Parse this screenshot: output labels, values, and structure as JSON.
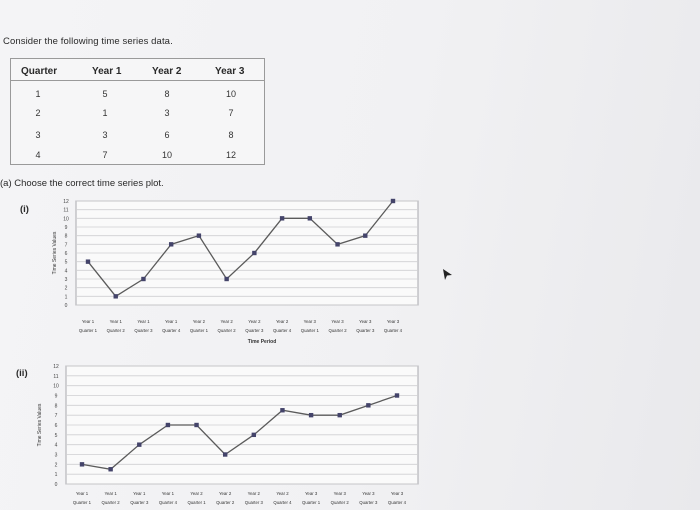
{
  "intro_text": "Consider the following time series data.",
  "table": {
    "headers": [
      "Quarter",
      "Year 1",
      "Year 2",
      "Year 3"
    ],
    "rows": [
      [
        "1",
        "5",
        "8",
        "10"
      ],
      [
        "2",
        "1",
        "3",
        "7"
      ],
      [
        "3",
        "3",
        "6",
        "8"
      ],
      [
        "4",
        "7",
        "10",
        "12"
      ]
    ]
  },
  "question": "(a) Choose the correct time series plot.",
  "options": [
    {
      "label": "(i)",
      "ylabel": "Time Series Values",
      "xlabel": "Time Period"
    },
    {
      "label": "(ii)",
      "ylabel": "Time Series Values",
      "xlabel": ""
    }
  ],
  "colors": {
    "line": "#5b5b5b",
    "marker": "#44446a",
    "grid": "#cfcfd2"
  },
  "chart_data": [
    {
      "type": "line",
      "ylabel": "Time Series Values",
      "xlabel": "Time Period",
      "ylim": [
        0,
        12
      ],
      "yticks": [
        "0",
        "1",
        "2",
        "3",
        "4",
        "5",
        "6",
        "7",
        "8",
        "9",
        "10",
        "11",
        "12"
      ],
      "categories": [
        {
          "year": "Year 1",
          "quarter": "Quarter 1"
        },
        {
          "year": "Year 1",
          "quarter": "Quarter 2"
        },
        {
          "year": "Year 1",
          "quarter": "Quarter 3"
        },
        {
          "year": "Year 1",
          "quarter": "Quarter 4"
        },
        {
          "year": "Year 2",
          "quarter": "Quarter 1"
        },
        {
          "year": "Year 2",
          "quarter": "Quarter 2"
        },
        {
          "year": "Year 2",
          "quarter": "Quarter 3"
        },
        {
          "year": "Year 2",
          "quarter": "Quarter 4"
        },
        {
          "year": "Year 3",
          "quarter": "Quarter 1"
        },
        {
          "year": "Year 3",
          "quarter": "Quarter 2"
        },
        {
          "year": "Year 3",
          "quarter": "Quarter 3"
        },
        {
          "year": "Year 3",
          "quarter": "Quarter 4"
        }
      ],
      "values": [
        5,
        1,
        3,
        7,
        8,
        3,
        6,
        10,
        10,
        7,
        8,
        12
      ]
    },
    {
      "type": "line",
      "ylabel": "Time Series Values",
      "xlabel": "",
      "ylim": [
        0,
        12
      ],
      "yticks": [
        "0",
        "1",
        "2",
        "3",
        "4",
        "5",
        "6",
        "7",
        "8",
        "9",
        "10",
        "11",
        "12"
      ],
      "categories": [
        {
          "year": "Year 1",
          "quarter": "Quarter 1"
        },
        {
          "year": "Year 1",
          "quarter": "Quarter 2"
        },
        {
          "year": "Year 1",
          "quarter": "Quarter 3"
        },
        {
          "year": "Year 1",
          "quarter": "Quarter 4"
        },
        {
          "year": "Year 2",
          "quarter": "Quarter 1"
        },
        {
          "year": "Year 2",
          "quarter": "Quarter 2"
        },
        {
          "year": "Year 2",
          "quarter": "Quarter 3"
        },
        {
          "year": "Year 2",
          "quarter": "Quarter 4"
        },
        {
          "year": "Year 3",
          "quarter": "Quarter 1"
        },
        {
          "year": "Year 3",
          "quarter": "Quarter 2"
        },
        {
          "year": "Year 3",
          "quarter": "Quarter 3"
        },
        {
          "year": "Year 3",
          "quarter": "Quarter 4"
        }
      ],
      "values": [
        2,
        1.5,
        4,
        6,
        6,
        3,
        5,
        7.5,
        7,
        7,
        8,
        9
      ]
    }
  ]
}
